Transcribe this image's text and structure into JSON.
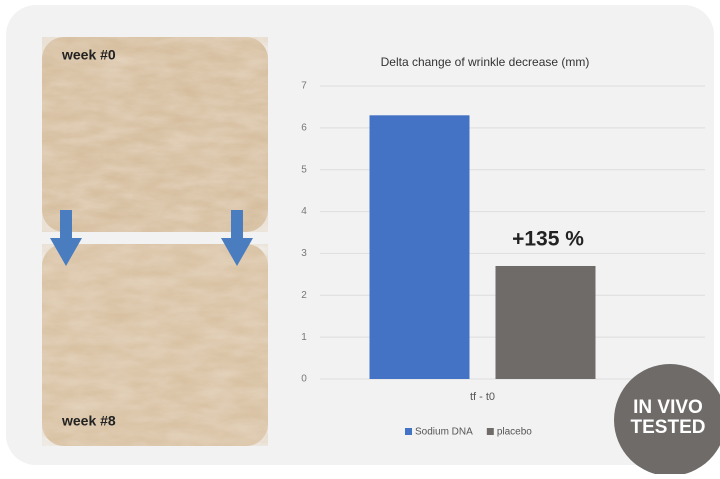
{
  "chart_data": {
    "type": "bar",
    "title": "Delta change of wrinkle decrease (mm)",
    "categories": [
      "tf - t0"
    ],
    "series": [
      {
        "name": "Sodium DNA",
        "color": "#4472c4",
        "values": [
          6.3
        ]
      },
      {
        "name": "placebo",
        "color": "#6f6b69",
        "values": [
          2.7
        ]
      }
    ],
    "ylim": [
      0,
      7
    ],
    "yticks": [
      0,
      1,
      2,
      3,
      4,
      5,
      6,
      7
    ],
    "grid": true,
    "legend": "bottom",
    "annotation": "+135 %"
  },
  "images": {
    "before": "week #0",
    "after": "week #8"
  },
  "badge": [
    "IN VIVO",
    "TESTED"
  ]
}
